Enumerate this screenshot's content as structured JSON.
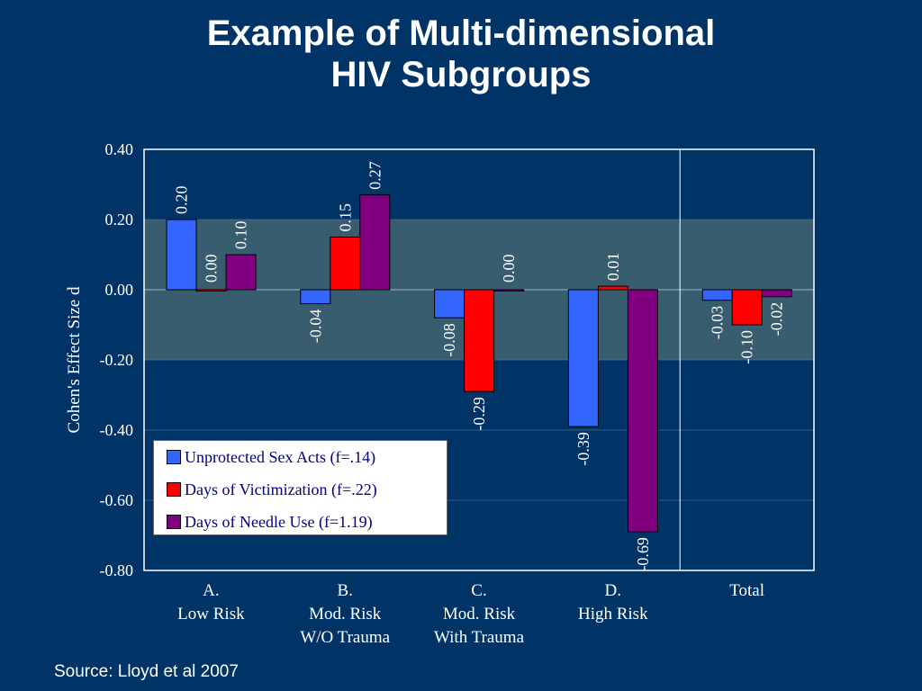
{
  "slide": {
    "title_line1": "Example of Multi-dimensional",
    "title_line2": "HIV Subgroups",
    "source": "Source: Lloyd et al 2007"
  },
  "chart_data": {
    "type": "bar",
    "ylabel": "Cohen's Effect Size d",
    "xlabel": "",
    "ylim": [
      -0.8,
      0.4
    ],
    "yticks": [
      "0.40",
      "0.20",
      "0.00",
      "-0.20",
      "-0.40",
      "-0.60",
      "-0.80"
    ],
    "grid": true,
    "legend_position": "lower-left inside plot",
    "shaded_band": [
      -0.2,
      0.2
    ],
    "categories": [
      [
        "A.",
        "Low Risk"
      ],
      [
        "B.",
        "Mod. Risk",
        "W/O Trauma"
      ],
      [
        "C.",
        "Mod. Risk",
        "With Trauma"
      ],
      [
        "D.",
        "High Risk"
      ],
      [
        "Total"
      ]
    ],
    "series": [
      {
        "name": "Unprotected Sex Acts (f=.14)",
        "color": "#3366ff",
        "values": [
          0.2,
          -0.04,
          -0.08,
          -0.39,
          -0.03
        ],
        "labels": [
          "0.20",
          "-0.04",
          "-0.08",
          "-0.39",
          "-0.03"
        ]
      },
      {
        "name": "Days of Victimization (f=.22)",
        "color": "#ff0000",
        "values": [
          0.0,
          0.15,
          -0.29,
          0.01,
          -0.1
        ],
        "labels": [
          "0.00",
          "0.15",
          "-0.29",
          "0.01",
          "-0.10"
        ]
      },
      {
        "name": "Days of Needle Use (f=1.19)",
        "color": "#800080",
        "values": [
          0.1,
          0.27,
          0.0,
          -0.69,
          -0.02
        ],
        "labels": [
          "0.10",
          "0.27",
          "0.00",
          "-0.69",
          "-0.02"
        ]
      }
    ]
  }
}
